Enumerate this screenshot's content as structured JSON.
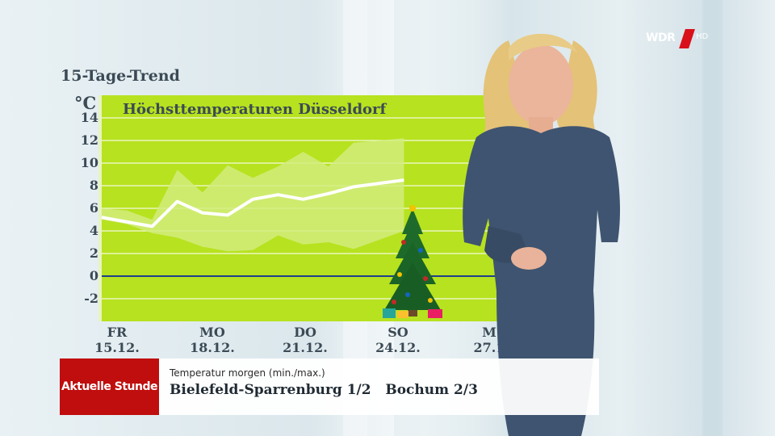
{
  "overlay": {
    "trend_title": "15-Tage-Trend",
    "unit": "°C",
    "chart_title": "Höchsttemperaturen Düsseldorf"
  },
  "chart_data": {
    "type": "line",
    "title": "Höchsttemperaturen Düsseldorf",
    "ylabel": "°C",
    "ylim": [
      -4,
      16
    ],
    "y_ticks": [
      "14",
      "12",
      "10",
      "8",
      "6",
      "4",
      "2",
      "0",
      "-2"
    ],
    "x_ticks": [
      {
        "day": "FR",
        "date": "15.12."
      },
      {
        "day": "MO",
        "date": "18.12."
      },
      {
        "day": "DO",
        "date": "21.12."
      },
      {
        "day": "SO",
        "date": "24.12."
      },
      {
        "day": "M",
        "date": "27.1"
      }
    ],
    "series": [
      {
        "values": [
          5.2,
          4.8,
          4.4,
          6.6,
          5.6,
          5.4,
          6.8,
          7.2,
          6.8,
          7.3,
          7.9,
          8.2,
          8.5
        ]
      },
      {
        "upper": [
          6.0,
          5.8,
          5.0,
          9.4,
          7.4,
          9.8,
          8.7,
          9.7,
          11.0,
          9.7,
          11.8,
          12.0,
          12.2
        ]
      },
      {
        "lower": [
          5.0,
          4.6,
          3.8,
          3.4,
          2.6,
          2.2,
          2.3,
          3.6,
          2.8,
          3.0,
          2.4,
          3.2,
          4.0
        ]
      }
    ],
    "grid": true,
    "colors": {
      "background": "#b7e21f",
      "band": "#d2ec7c",
      "line": "#ffffff",
      "zero_line": "#1e3f8a"
    }
  },
  "lower_third": {
    "show_name": "Aktuelle Stunde",
    "caption": "Temperatur morgen (min./max.)",
    "values": "Bielefeld-Sparrenburg 1/2   Bochum 2/3"
  },
  "logo": {
    "wdr": "WDR",
    "hd": "HD"
  }
}
